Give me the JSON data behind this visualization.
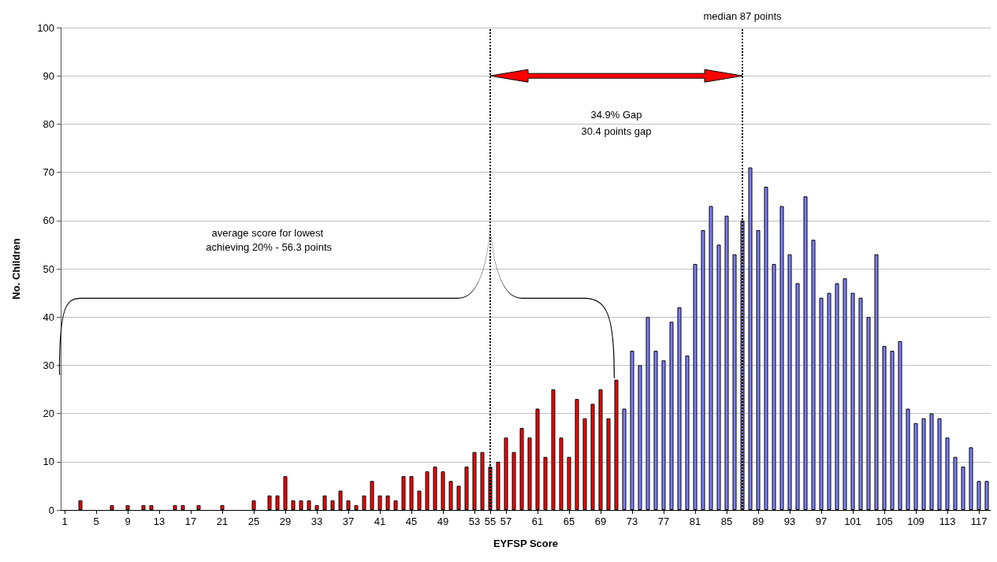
{
  "chart_data": {
    "type": "bar",
    "xlabel": "EYFSP Score",
    "ylabel": "No. Children",
    "x": [
      1,
      2,
      3,
      4,
      5,
      6,
      7,
      8,
      9,
      10,
      11,
      12,
      13,
      14,
      15,
      16,
      17,
      18,
      19,
      20,
      21,
      22,
      23,
      24,
      25,
      26,
      27,
      28,
      29,
      30,
      31,
      32,
      33,
      34,
      35,
      36,
      37,
      38,
      39,
      40,
      41,
      42,
      43,
      44,
      45,
      46,
      47,
      48,
      49,
      50,
      51,
      52,
      53,
      54,
      55,
      56,
      57,
      58,
      59,
      60,
      61,
      62,
      63,
      64,
      65,
      66,
      67,
      68,
      69,
      70,
      71,
      72,
      73,
      74,
      75,
      76,
      77,
      78,
      79,
      80,
      81,
      82,
      83,
      84,
      85,
      86,
      87,
      88,
      89,
      90,
      91,
      92,
      93,
      94,
      95,
      96,
      97,
      98,
      99,
      100,
      101,
      102,
      103,
      104,
      105,
      106,
      107,
      108,
      109,
      110,
      111,
      112,
      113,
      114,
      115,
      116,
      117,
      118
    ],
    "xlim": [
      0.5,
      118.5
    ],
    "xticks": [
      1,
      5,
      9,
      13,
      17,
      21,
      25,
      29,
      33,
      37,
      41,
      45,
      49,
      53,
      55,
      57,
      61,
      65,
      69,
      73,
      77,
      81,
      85,
      89,
      93,
      97,
      101,
      105,
      109,
      113,
      117
    ],
    "ylim": [
      0,
      100
    ],
    "yticks": [
      0,
      10,
      20,
      30,
      40,
      50,
      60,
      70,
      80,
      90,
      100
    ],
    "grid": "y",
    "series": [
      {
        "color": "#ff0000",
        "values": [
          0,
          0,
          2,
          0,
          0,
          0,
          1,
          0,
          1,
          0,
          1,
          1,
          0,
          0,
          1,
          1,
          0,
          1,
          0,
          0,
          1,
          0,
          0,
          0,
          2,
          0,
          3,
          3,
          7,
          2,
          2,
          2,
          1,
          3,
          2,
          4,
          2,
          1,
          3,
          6,
          3,
          3,
          2,
          7,
          7,
          4,
          8,
          9,
          8,
          6,
          5,
          9,
          12,
          12,
          9,
          10,
          15,
          12,
          17,
          15,
          21,
          11,
          25,
          15,
          11,
          23,
          19,
          22,
          25,
          19,
          27,
          null,
          null,
          null,
          null,
          null,
          null,
          null,
          null,
          null,
          null,
          null,
          null,
          null,
          null,
          null,
          null,
          null,
          null,
          null,
          null,
          null,
          null,
          null,
          null,
          null,
          null,
          null,
          null,
          null,
          null,
          null,
          null,
          null,
          null,
          null,
          null,
          null,
          null,
          null,
          null,
          null,
          null,
          null,
          null,
          null,
          null,
          null
        ]
      },
      {
        "color": "#8080ff",
        "values": [
          null,
          null,
          null,
          null,
          null,
          null,
          null,
          null,
          null,
          null,
          null,
          null,
          null,
          null,
          null,
          null,
          null,
          null,
          null,
          null,
          null,
          null,
          null,
          null,
          null,
          null,
          null,
          null,
          null,
          null,
          null,
          null,
          null,
          null,
          null,
          null,
          null,
          null,
          null,
          null,
          null,
          null,
          null,
          null,
          null,
          null,
          null,
          null,
          null,
          null,
          null,
          null,
          null,
          null,
          null,
          null,
          null,
          null,
          null,
          null,
          null,
          null,
          null,
          null,
          null,
          null,
          null,
          null,
          null,
          null,
          null,
          21,
          33,
          30,
          40,
          33,
          31,
          39,
          42,
          32,
          51,
          58,
          63,
          55,
          61,
          53,
          60,
          71,
          58,
          67,
          51,
          63,
          53,
          47,
          65,
          56,
          44,
          45,
          47,
          48,
          45,
          44,
          40,
          53,
          34,
          33,
          35,
          21,
          18,
          19,
          20,
          19,
          15,
          11,
          9,
          13,
          6,
          6
        ]
      }
    ],
    "ref_lines": [
      {
        "axis": "x",
        "value": 55,
        "label": null,
        "color": "#000000",
        "line_style": "dotted"
      },
      {
        "axis": "x",
        "value": 87,
        "label": "median 87 points",
        "color": "#000000",
        "line_style": "dotted"
      }
    ],
    "annotations": [
      "34.9% Gap",
      "30.4 points gap",
      "average score for lowest achieving 20% - 56.3 points"
    ]
  }
}
